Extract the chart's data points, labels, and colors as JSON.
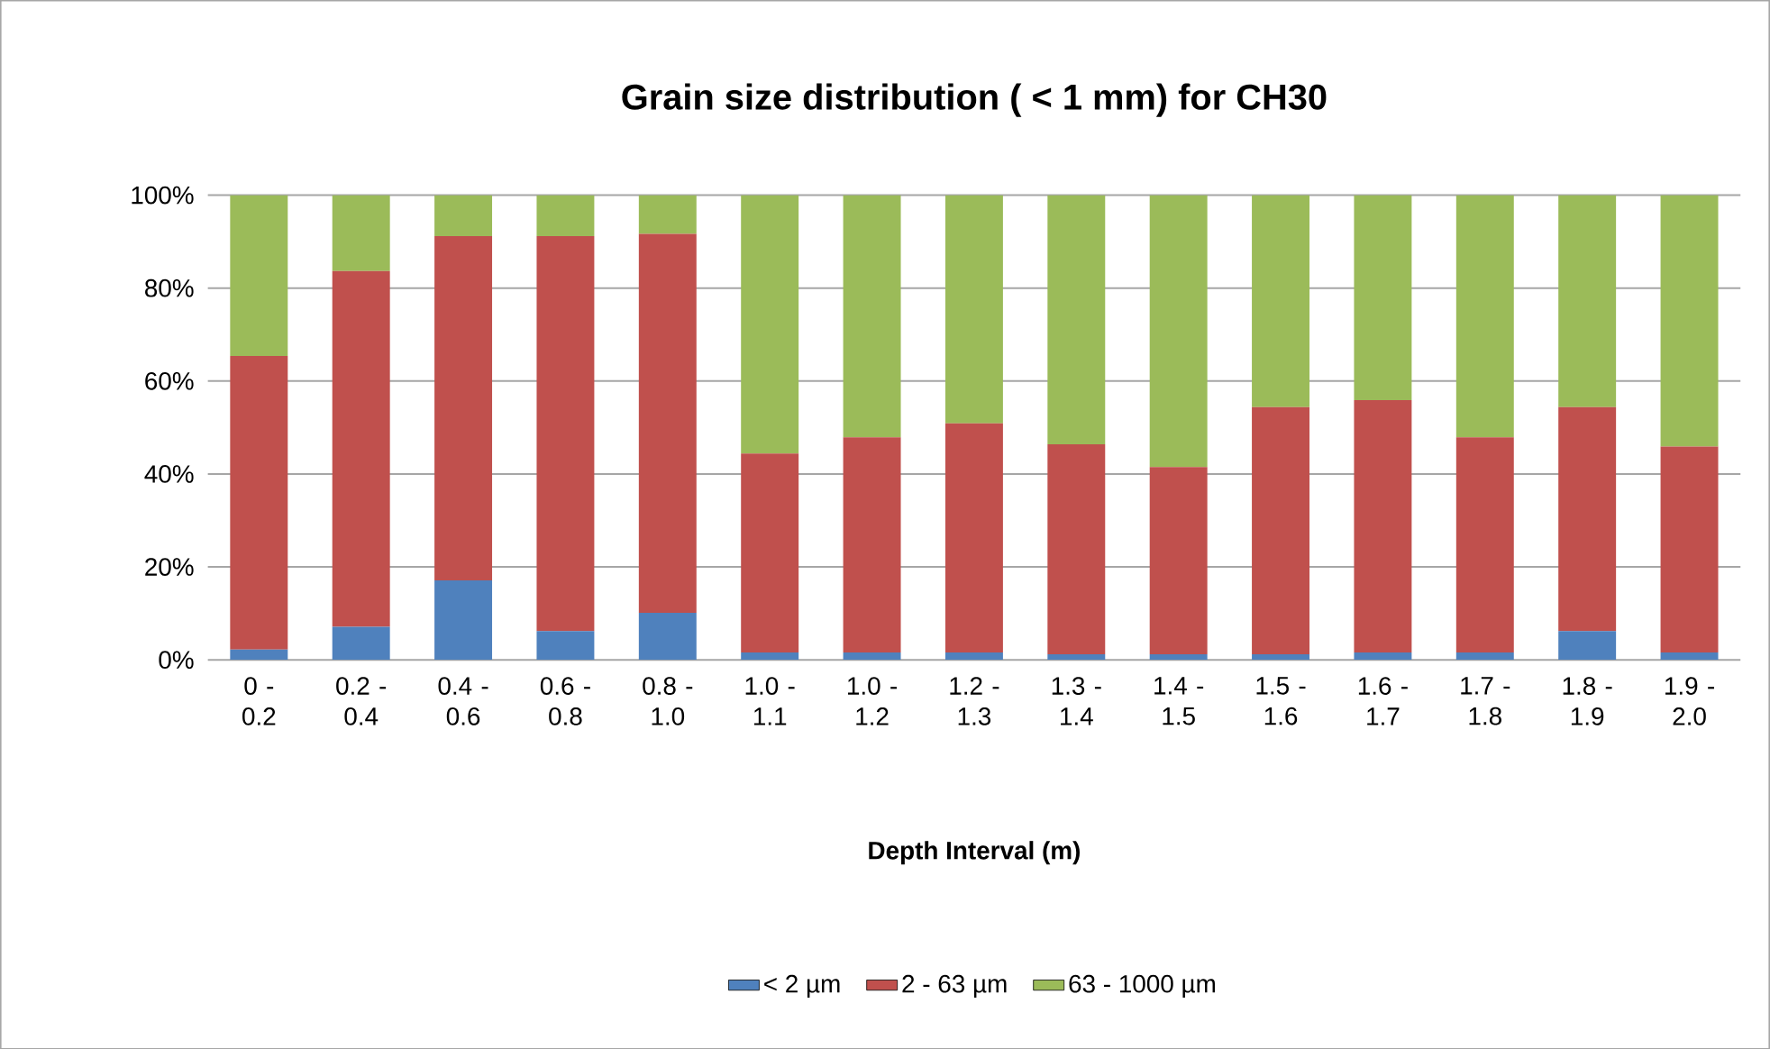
{
  "chart_data": {
    "type": "bar",
    "title": "Grain size distribution ( < 1 mm) for CH30",
    "xlabel": "Depth Interval (m)",
    "categories": [
      "0 - 0.2",
      "0.2 - 0.4",
      "0.4 - 0.6",
      "0.6 - 0.8",
      "0.8 - 1.0",
      "1.0 - 1.1",
      "1.0 - 1.2",
      "1.2 - 1.3",
      "1.3 - 1.4",
      "1.4 - 1.5",
      "1.5 - 1.6",
      "1.6 - 1.7",
      "1.7 - 1.8",
      "1.8 - 1.9",
      "1.9 - 2.0"
    ],
    "series": [
      {
        "name": "< 2 µm",
        "color": "#4f81bd",
        "values": [
          2.2,
          7.1,
          17.1,
          6.2,
          10.1,
          1.6,
          1.6,
          1.6,
          1.2,
          1.2,
          1.2,
          1.6,
          1.6,
          6.2,
          1.6
        ]
      },
      {
        "name": "2 - 63 µm",
        "color": "#c0504d",
        "values": [
          63.2,
          76.6,
          74.1,
          85.0,
          81.6,
          42.8,
          46.3,
          49.3,
          45.2,
          40.3,
          53.2,
          54.3,
          46.3,
          48.2,
          44.3
        ]
      },
      {
        "name": "63 - 1000  µm",
        "color": "#9bbb59",
        "values": [
          34.6,
          16.3,
          8.8,
          8.8,
          8.3,
          55.6,
          52.1,
          49.1,
          53.6,
          58.5,
          45.6,
          44.1,
          52.1,
          45.6,
          54.1
        ]
      }
    ],
    "stacked": true,
    "ylim": [
      0,
      100
    ],
    "yticks": [
      {
        "value": 0,
        "label": "0%"
      },
      {
        "value": 20,
        "label": "20%"
      },
      {
        "value": 40,
        "label": "40%"
      },
      {
        "value": 60,
        "label": "60%"
      },
      {
        "value": 80,
        "label": "80%"
      },
      {
        "value": 100,
        "label": "100%"
      }
    ],
    "grid": "y",
    "legend": "bottom"
  }
}
